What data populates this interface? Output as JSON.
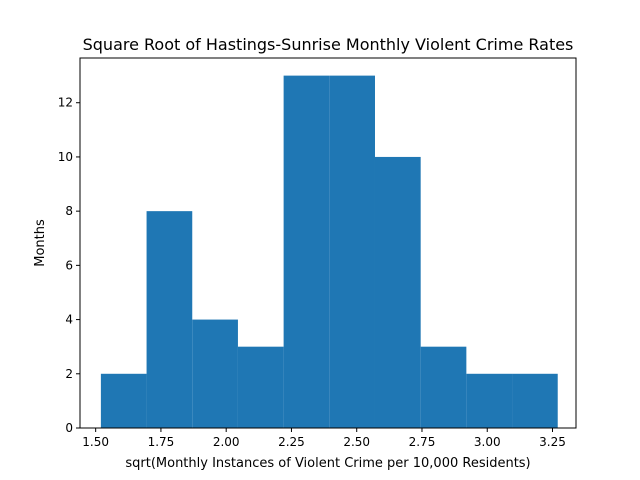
{
  "chart_data": {
    "type": "histogram",
    "title": "Square Root of Hastings-Sunrise Monthly Violent Crime Rates",
    "xlabel": "sqrt(Monthly Instances of Violent Crime per 10,000 Residents)",
    "ylabel": "Months",
    "xlim": [
      1.44,
      3.34
    ],
    "ylim": [
      0,
      13.65
    ],
    "xticks": [
      "1.50",
      "1.75",
      "2.00",
      "2.25",
      "2.50",
      "2.75",
      "3.00",
      "3.25"
    ],
    "yticks": [
      "0",
      "2",
      "4",
      "6",
      "8",
      "10",
      "12"
    ],
    "bin_edges": [
      1.52,
      1.695,
      1.87,
      2.045,
      2.22,
      2.395,
      2.57,
      2.745,
      2.92,
      3.095,
      3.27
    ],
    "counts": [
      2,
      8,
      4,
      3,
      13,
      13,
      10,
      3,
      2,
      2
    ],
    "bar_color": "#1f77b4",
    "grid": false,
    "legend": "none"
  }
}
